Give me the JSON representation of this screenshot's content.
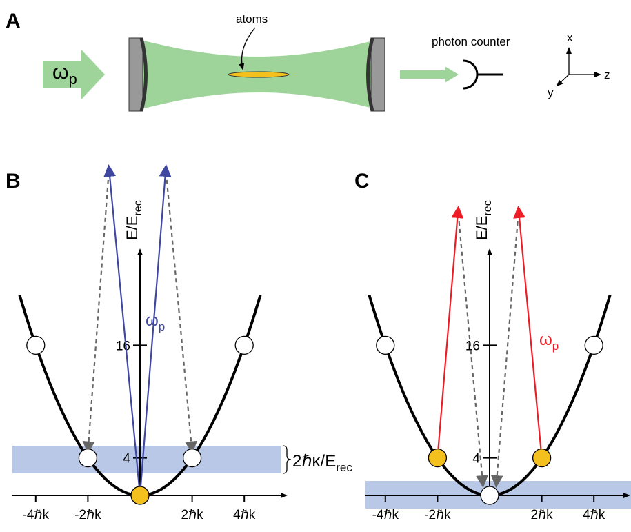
{
  "panels": {
    "a": {
      "label": "A",
      "pump": {
        "symbol": "ω",
        "subscript": "p"
      },
      "atoms": "atoms",
      "detector": "photon counter",
      "axes": {
        "x": "x",
        "y": "y",
        "z": "z"
      }
    },
    "b": {
      "label": "B",
      "y_axis": {
        "label": "E/E",
        "subscript": "rec",
        "ticks": [
          16,
          4
        ]
      },
      "x_ticks": [
        {
          "value": -4,
          "label": "-4ℏk"
        },
        {
          "value": -2,
          "label": "-2ℏk"
        },
        {
          "value": 2,
          "label": "2ℏk"
        },
        {
          "value": 4,
          "label": "4ℏk"
        }
      ],
      "pump": {
        "symbol": "ω",
        "subscript": "p"
      },
      "band_label": {
        "text": "2ℏκ/E",
        "subscript": "rec"
      }
    },
    "c": {
      "label": "C",
      "y_axis": {
        "label": "E/E",
        "subscript": "rec",
        "ticks": [
          16,
          4
        ]
      },
      "x_ticks": [
        {
          "value": -4,
          "label": "-4ℏk"
        },
        {
          "value": -2,
          "label": "-2ℏk"
        },
        {
          "value": 2,
          "label": "2ℏk"
        },
        {
          "value": 4,
          "label": "4ℏk"
        }
      ],
      "pump": {
        "symbol": "ω",
        "subscript": "p"
      }
    }
  }
}
